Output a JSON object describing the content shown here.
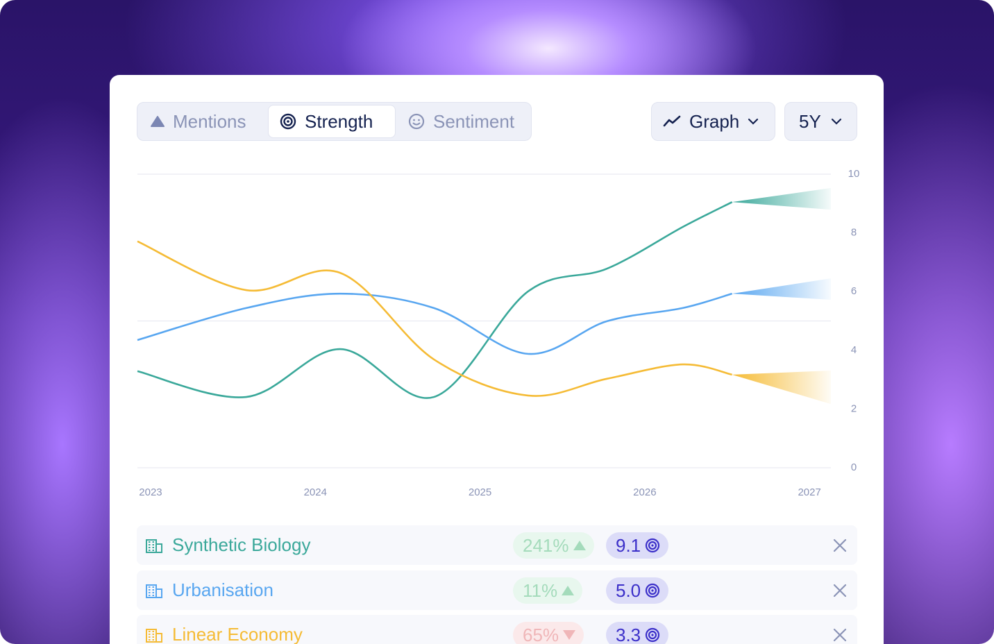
{
  "tabs": [
    "Mentions",
    "Strength",
    "Sentiment"
  ],
  "active_tab": 1,
  "controls": {
    "view": "Graph",
    "range": "5Y"
  },
  "chart_data": {
    "type": "line",
    "x": [
      2022.92,
      2023.58,
      2024.15,
      2024.72,
      2025.29,
      2025.77,
      2026.23,
      2026.53
    ],
    "xlim": [
      2022.92,
      2027.13
    ],
    "xticks": [
      2023,
      2024,
      2025,
      2026,
      2027
    ],
    "ylim": [
      0,
      10
    ],
    "yticks": [
      0,
      2,
      4,
      6,
      8,
      10
    ],
    "grid_lines": [
      0,
      5,
      10
    ],
    "forecast_x": 2027.13,
    "series": [
      {
        "name": "Synthetic Biology",
        "color": "#3aa89a",
        "values": [
          3.29,
          2.41,
          4.04,
          2.41,
          6.0,
          6.78,
          8.2,
          9.05
        ],
        "forecast": [
          8.79,
          9.53
        ]
      },
      {
        "name": "Urbanisation",
        "color": "#58a6f0",
        "values": [
          4.35,
          5.44,
          5.93,
          5.44,
          3.88,
          4.99,
          5.44,
          5.93
        ],
        "forecast": [
          5.72,
          6.45
        ]
      },
      {
        "name": "Linear Economy",
        "color": "#f5bb35",
        "values": [
          7.71,
          6.05,
          6.64,
          3.69,
          2.46,
          3.03,
          3.52,
          3.17
        ],
        "forecast": [
          2.17,
          3.31
        ]
      }
    ]
  },
  "rows": [
    {
      "change": "241%",
      "direction": "up",
      "score": "9.1"
    },
    {
      "change": "11%",
      "direction": "up",
      "score": "5.0"
    },
    {
      "change": "65%",
      "direction": "down",
      "score": "3.3"
    }
  ]
}
